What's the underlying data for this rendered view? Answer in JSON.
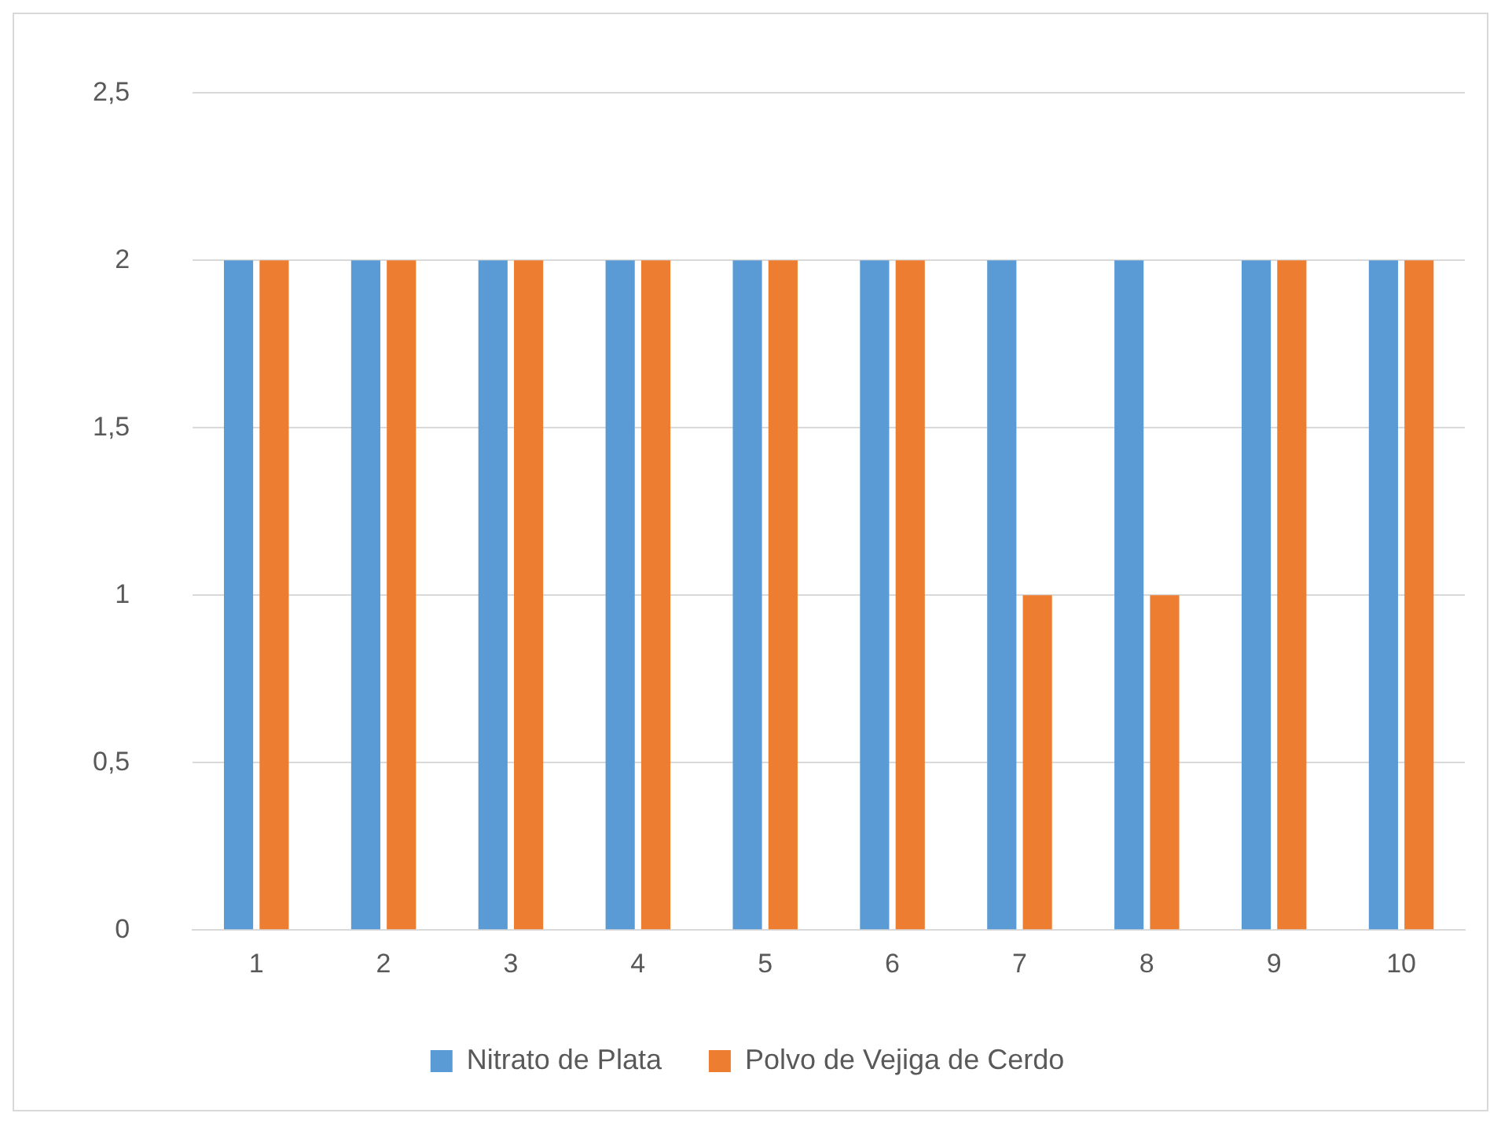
{
  "chart_data": {
    "type": "bar",
    "categories": [
      "1",
      "2",
      "3",
      "4",
      "5",
      "6",
      "7",
      "8",
      "9",
      "10"
    ],
    "series": [
      {
        "name": "Nitrato de Plata",
        "color": "#5b9bd5",
        "values": [
          2,
          2,
          2,
          2,
          2,
          2,
          2,
          2,
          2,
          2
        ]
      },
      {
        "name": "Polvo de Vejiga de Cerdo",
        "color": "#ed7d31",
        "values": [
          2,
          2,
          2,
          2,
          2,
          2,
          1,
          1,
          2,
          2
        ]
      }
    ],
    "ylim": [
      0,
      2.5
    ],
    "yticks": [
      0,
      {
        "value": 0.5,
        "label": "0,5"
      },
      1,
      {
        "value": 1.5,
        "label": "1,5"
      },
      2,
      {
        "value": 2.5,
        "label": "2,5"
      }
    ],
    "grid": "y",
    "legend": "bottom"
  }
}
